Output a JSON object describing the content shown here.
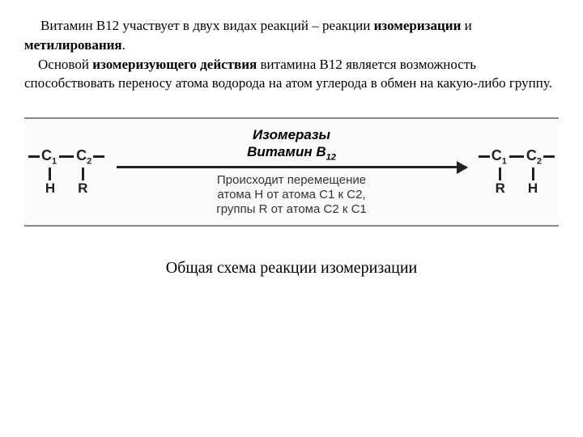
{
  "paragraph": {
    "line1_a": "Витамин В12 участвует в двух видах реакций – реакции ",
    "line1_b": "изомеризации",
    "line1_c": " и ",
    "line1_d": "метилирования",
    "line1_e": ".",
    "line2_a": "Основой ",
    "line2_b": "изомеризующего действия",
    "line2_c": " витамина В12 является возможность способствовать переносу атома водорода на атом углерода в обмен на какую-либо группу."
  },
  "diagram": {
    "left_mol": {
      "c1": "C",
      "c1_sub": "1",
      "c2": "C",
      "c2_sub": "2",
      "below_left": "H",
      "below_right": "R"
    },
    "right_mol": {
      "c1": "C",
      "c1_sub": "1",
      "c2": "C",
      "c2_sub": "2",
      "below_left": "R",
      "below_right": "H"
    },
    "enzyme_line1": "Изомеразы",
    "enzyme_line2": "Витамин В",
    "enzyme_sub": "12",
    "desc_line1": "Происходит перемещение",
    "desc_line2": "атома H от атома C1 к C2,",
    "desc_line3": "группы R от атома C2 к C1",
    "colors": {
      "line": "#222222",
      "text": "#000000",
      "desc": "#333333",
      "bg": "#fafafa"
    }
  },
  "caption": "Общая схема реакции изомеризации"
}
